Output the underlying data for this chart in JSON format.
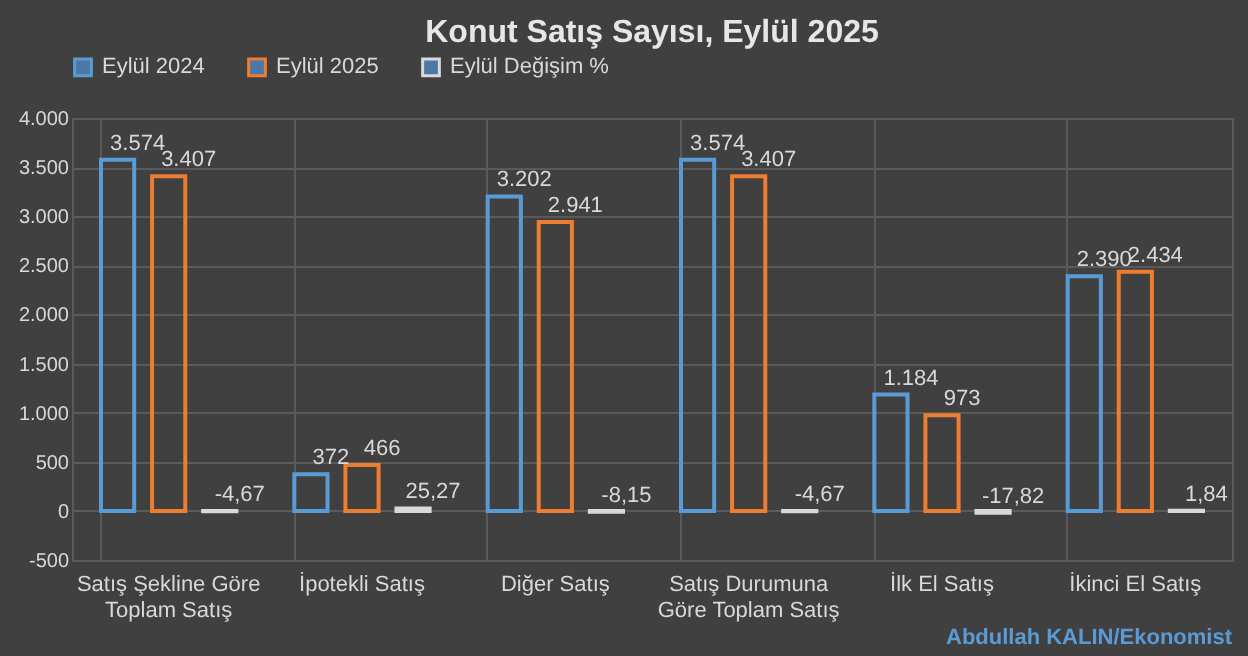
{
  "chart_data": {
    "type": "bar",
    "title": "Konut Satış Sayısı, Eylül 2025",
    "categories": [
      "Satış Şekline Göre Toplam Satış",
      "İpotekli Satış",
      "Diğer Satış",
      "Satış Durumuna Göre Toplam Satış",
      "İlk El Satış",
      "İkinci El Satış"
    ],
    "series": [
      {
        "name": "Eylül 2024",
        "color": "#5b9bd5",
        "values": [
          3574,
          372,
          3202,
          3574,
          1184,
          2390
        ],
        "value_labels": [
          "3.574",
          "372",
          "3.202",
          "3.574",
          "1.184",
          "2.390"
        ]
      },
      {
        "name": "Eylül 2025",
        "color": "#ed7d31",
        "values": [
          3407,
          466,
          2941,
          3407,
          973,
          2434
        ],
        "value_labels": [
          "3.407",
          "466",
          "2.941",
          "3.407",
          "973",
          "2.434"
        ]
      },
      {
        "name": "Eylül Değişim %",
        "color": "#d9d9d9",
        "values": [
          -4.67,
          25.27,
          -8.15,
          -4.67,
          -17.82,
          1.84
        ],
        "value_labels": [
          "-4,67",
          "25,27",
          "-8,15",
          "-4,67",
          "-17,82",
          "1,84"
        ]
      }
    ],
    "ylim": [
      -500,
      4000
    ],
    "yticks": [
      {
        "value": -500,
        "label": "-500"
      },
      0,
      500,
      {
        "value": 1000,
        "label": "1.000"
      },
      {
        "value": 1500,
        "label": "1.500"
      },
      {
        "value": 2000,
        "label": "2.000"
      },
      {
        "value": 2500,
        "label": "2.500"
      },
      {
        "value": 3000,
        "label": "3.000"
      },
      {
        "value": 3500,
        "label": "3.500"
      },
      {
        "value": 4000,
        "label": "4.000"
      }
    ],
    "grid": true,
    "legend": "top",
    "annotations": [
      "Abdullah KALIN/Ekonomist"
    ]
  }
}
